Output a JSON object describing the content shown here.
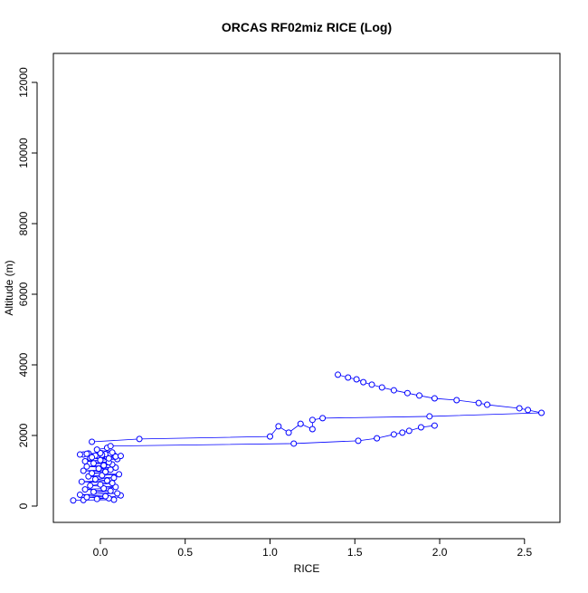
{
  "chart_data": {
    "type": "line",
    "title": "ORCAS RF02miz RICE (Log)",
    "x_label": "RICE",
    "y_label": "Altitude (m)",
    "color": "#0000ff",
    "x": [
      -0.16,
      -0.1,
      0.08,
      0.12,
      -0.02,
      0.05,
      -0.08,
      0.03,
      -0.12,
      0.1,
      -0.04,
      0.06,
      -0.09,
      0.02,
      0.09,
      -0.06,
      0.0,
      0.07,
      -0.11,
      0.04,
      -0.03,
      0.08,
      -0.07,
      0.01,
      0.11,
      -0.05,
      0.03,
      -0.1,
      0.06,
      -0.01,
      0.09,
      -0.08,
      0.02,
      0.07,
      -0.04,
      0.05,
      -0.09,
      0.0,
      0.1,
      -0.06,
      0.04,
      -0.02,
      0.08,
      -0.1,
      0.03,
      0.06,
      -0.07,
      0.01,
      -0.03,
      0.09,
      -0.05,
      0.05,
      -0.12,
      0.12,
      -0.08,
      0.0,
      0.07,
      -0.02,
      0.04,
      0.06,
      1.14,
      1.52,
      1.63,
      1.73,
      1.78,
      1.82,
      1.89,
      1.97,
      null,
      -0.05,
      0.23,
      1.0,
      1.05,
      1.11,
      1.18,
      1.25,
      1.25,
      1.31,
      1.94,
      2.6,
      2.52,
      2.47,
      2.28,
      2.23,
      2.1,
      1.97,
      1.88,
      1.81,
      1.73,
      1.66,
      1.6,
      1.55,
      1.51,
      1.46,
      1.4
    ],
    "values": [
      160,
      170,
      180,
      300,
      200,
      220,
      250,
      280,
      320,
      360,
      400,
      430,
      470,
      500,
      540,
      580,
      610,
      650,
      690,
      720,
      760,
      800,
      840,
      870,
      900,
      930,
      970,
      1000,
      1030,
      1060,
      1090,
      1120,
      1150,
      1180,
      1210,
      1240,
      1270,
      1300,
      1330,
      1360,
      1390,
      1420,
      1440,
      1460,
      1470,
      1480,
      1490,
      1450,
      1430,
      1400,
      1380,
      1350,
      1460,
      1420,
      1480,
      1500,
      1520,
      1600,
      1650,
      1700,
      1770,
      1850,
      1920,
      2030,
      2080,
      2130,
      2230,
      2280,
      null,
      1820,
      1900,
      1970,
      2260,
      2080,
      2330,
      2180,
      2440,
      2490,
      2540,
      2640,
      2720,
      2770,
      2870,
      2920,
      3000,
      3050,
      3130,
      3200,
      3280,
      3360,
      3440,
      3510,
      3590,
      3640,
      3720
    ],
    "xlim": [
      -0.277,
      2.709
    ],
    "ylim": [
      -462,
      12821
    ],
    "xticks": [
      {
        "value": 0,
        "label": "0.0"
      },
      0.5,
      {
        "value": 1,
        "label": "1.0"
      },
      1.5,
      {
        "value": 2,
        "label": "2.0"
      },
      2.5
    ],
    "yticks": [
      0,
      2000,
      4000,
      6000,
      8000,
      10000,
      12000
    ]
  }
}
